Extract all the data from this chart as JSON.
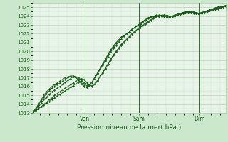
{
  "xlabel": "Pression niveau de la mer( hPa )",
  "background_color": "#cce8cc",
  "plot_bg_color": "#e8f4e8",
  "grid_color_major": "#aacfaa",
  "grid_color_minor": "#ccddcc",
  "line_color": "#1a5c1a",
  "ylim": [
    1013,
    1025.5
  ],
  "yticks": [
    1013,
    1014,
    1015,
    1016,
    1017,
    1018,
    1019,
    1020,
    1021,
    1022,
    1023,
    1024,
    1025
  ],
  "day_labels": [
    "Ven",
    "Sam",
    "Dim"
  ],
  "day_positions": [
    0.27,
    0.55,
    0.865
  ],
  "num_points": 73,
  "series": [
    [
      1013.1,
      1013.3,
      1013.5,
      1013.7,
      1013.9,
      1014.1,
      1014.3,
      1014.5,
      1014.7,
      1014.9,
      1015.1,
      1015.3,
      1015.5,
      1015.7,
      1015.9,
      1016.1,
      1016.3,
      1016.5,
      1016.6,
      1016.5,
      1016.3,
      1016.2,
      1016.1,
      1016.3,
      1016.7,
      1017.1,
      1017.5,
      1018.0,
      1018.5,
      1019.0,
      1019.5,
      1019.9,
      1020.3,
      1020.7,
      1021.0,
      1021.3,
      1021.6,
      1021.9,
      1022.2,
      1022.5,
      1022.7,
      1022.9,
      1023.1,
      1023.3,
      1023.5,
      1023.7,
      1023.9,
      1024.0,
      1024.1,
      1024.1,
      1024.1,
      1024.0,
      1024.0,
      1024.0,
      1024.1,
      1024.2,
      1024.3,
      1024.4,
      1024.4,
      1024.4,
      1024.4,
      1024.4,
      1024.3,
      1024.3,
      1024.4,
      1024.5,
      1024.6,
      1024.7,
      1024.8,
      1024.9,
      1025.0,
      1025.1,
      1025.2
    ],
    [
      1013.1,
      1013.4,
      1013.7,
      1014.1,
      1014.5,
      1014.8,
      1015.1,
      1015.4,
      1015.6,
      1015.8,
      1016.0,
      1016.2,
      1016.5,
      1016.7,
      1016.9,
      1017.1,
      1017.1,
      1017.0,
      1016.7,
      1016.3,
      1016.1,
      1016.2,
      1016.5,
      1016.9,
      1017.4,
      1017.9,
      1018.4,
      1018.9,
      1019.4,
      1019.9,
      1020.3,
      1020.7,
      1021.1,
      1021.4,
      1021.7,
      1022.0,
      1022.2,
      1022.5,
      1022.7,
      1022.9,
      1023.1,
      1023.3,
      1023.5,
      1023.7,
      1023.9,
      1024.0,
      1024.1,
      1024.1,
      1024.1,
      1024.1,
      1024.0,
      1024.0,
      1024.0,
      1024.1,
      1024.2,
      1024.3,
      1024.4,
      1024.4,
      1024.4,
      1024.4,
      1024.4,
      1024.3,
      1024.3,
      1024.4,
      1024.5,
      1024.6,
      1024.7,
      1024.8,
      1024.9,
      1025.0,
      1025.0,
      1025.1,
      1025.1
    ],
    [
      1013.1,
      1013.5,
      1013.9,
      1014.4,
      1014.8,
      1015.2,
      1015.5,
      1015.8,
      1016.0,
      1016.2,
      1016.4,
      1016.6,
      1016.8,
      1017.0,
      1017.1,
      1017.1,
      1017.0,
      1016.7,
      1016.3,
      1016.0,
      1015.9,
      1016.1,
      1016.5,
      1017.0,
      1017.5,
      1018.0,
      1018.5,
      1019.0,
      1019.6,
      1020.1,
      1020.5,
      1020.9,
      1021.3,
      1021.6,
      1021.8,
      1022.0,
      1022.2,
      1022.5,
      1022.7,
      1022.9,
      1023.1,
      1023.4,
      1023.6,
      1023.8,
      1023.9,
      1024.0,
      1024.0,
      1024.0,
      1024.0,
      1024.0,
      1023.9,
      1023.9,
      1024.0,
      1024.1,
      1024.2,
      1024.3,
      1024.4,
      1024.5,
      1024.5,
      1024.5,
      1024.5,
      1024.4,
      1024.3,
      1024.4,
      1024.5,
      1024.6,
      1024.7,
      1024.8,
      1024.9,
      1025.0,
      1025.0,
      1025.1,
      1025.2
    ],
    [
      1013.0,
      1013.2,
      1013.5,
      1013.7,
      1014.0,
      1014.2,
      1014.5,
      1014.7,
      1015.0,
      1015.2,
      1015.4,
      1015.6,
      1015.8,
      1016.0,
      1016.2,
      1016.4,
      1016.6,
      1016.8,
      1016.9,
      1016.8,
      1016.5,
      1016.2,
      1016.0,
      1016.2,
      1016.6,
      1017.1,
      1017.6,
      1018.1,
      1018.6,
      1019.1,
      1019.6,
      1020.0,
      1020.4,
      1020.8,
      1021.1,
      1021.4,
      1021.7,
      1022.0,
      1022.3,
      1022.5,
      1022.8,
      1023.0,
      1023.2,
      1023.4,
      1023.6,
      1023.8,
      1023.9,
      1024.0,
      1024.0,
      1024.0,
      1024.0,
      1024.0,
      1024.0,
      1024.0,
      1024.1,
      1024.2,
      1024.3,
      1024.4,
      1024.4,
      1024.4,
      1024.3,
      1024.3,
      1024.2,
      1024.3,
      1024.4,
      1024.5,
      1024.6,
      1024.7,
      1024.8,
      1024.8,
      1024.9,
      1025.0,
      1025.1
    ],
    [
      1013.1,
      1013.5,
      1014.0,
      1014.5,
      1015.0,
      1015.4,
      1015.7,
      1016.0,
      1016.2,
      1016.4,
      1016.6,
      1016.8,
      1017.0,
      1017.1,
      1017.2,
      1017.2,
      1017.1,
      1016.8,
      1016.4,
      1016.1,
      1015.9,
      1016.1,
      1016.5,
      1017.0,
      1017.5,
      1018.0,
      1018.6,
      1019.1,
      1019.7,
      1020.2,
      1020.6,
      1021.0,
      1021.3,
      1021.6,
      1021.8,
      1022.0,
      1022.2,
      1022.5,
      1022.7,
      1022.9,
      1023.2,
      1023.4,
      1023.6,
      1023.8,
      1023.9,
      1024.0,
      1024.0,
      1024.0,
      1024.0,
      1024.0,
      1023.9,
      1023.9,
      1024.0,
      1024.1,
      1024.2,
      1024.3,
      1024.4,
      1024.5,
      1024.5,
      1024.5,
      1024.4,
      1024.4,
      1024.3,
      1024.4,
      1024.5,
      1024.6,
      1024.7,
      1024.8,
      1024.9,
      1025.0,
      1025.0,
      1025.1,
      1025.2
    ]
  ]
}
